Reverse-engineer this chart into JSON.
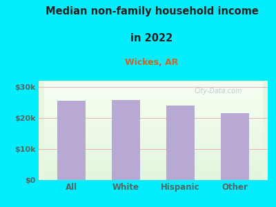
{
  "title_line1": "Median non-family household income",
  "title_line2": "in 2022",
  "subtitle": "Wickes, AR",
  "categories": [
    "All",
    "White",
    "Hispanic",
    "Other"
  ],
  "values": [
    25500,
    25800,
    24000,
    21500
  ],
  "bar_color": "#b8a8d4",
  "background_outer": "#00eeff",
  "grid_color": "#e8a0a8",
  "title_color": "#222222",
  "subtitle_color": "#cc6622",
  "tick_color": "#556666",
  "yticks": [
    0,
    10000,
    20000,
    30000
  ],
  "ytick_labels": [
    "$0",
    "$10k",
    "$20k",
    "$30k"
  ],
  "ylim": [
    0,
    32000
  ],
  "watermark": "City-Data.com"
}
